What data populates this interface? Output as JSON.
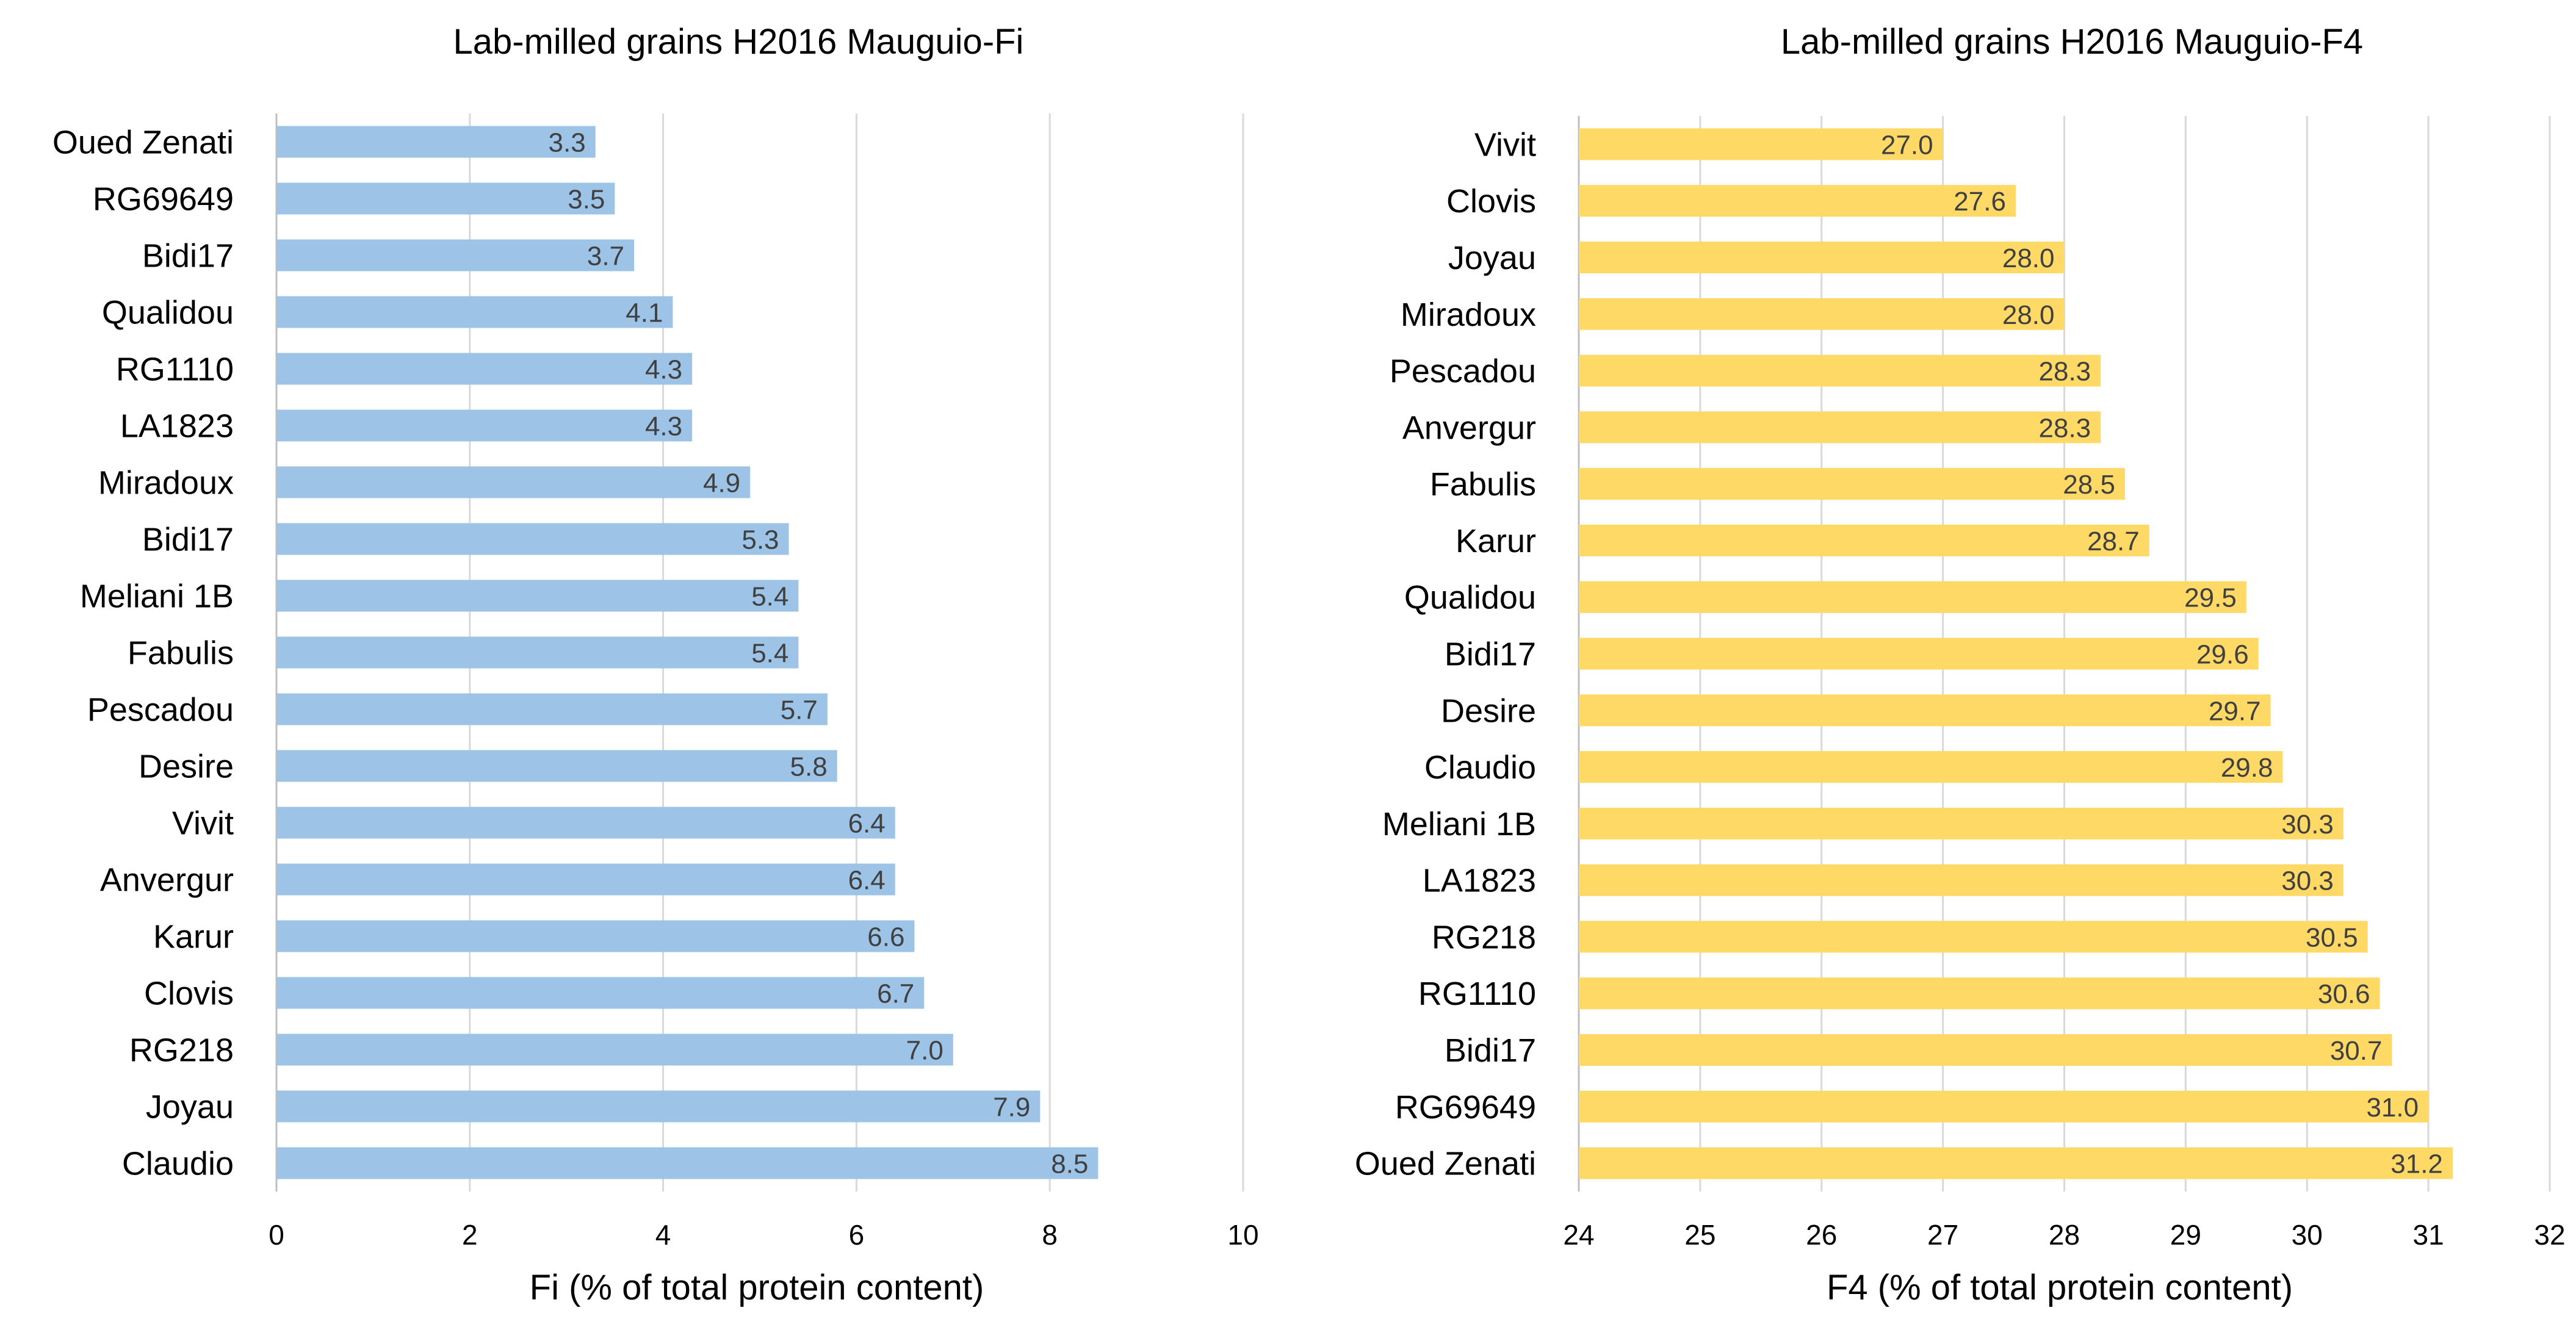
{
  "chart_data": [
    {
      "type": "bar",
      "orientation": "horizontal",
      "title": "Lab-milled grains H2016 Mauguio-Fi",
      "xlabel": "Fi (% of total protein content)",
      "ylabel": "",
      "xlim": [
        0,
        10
      ],
      "xticks": [
        "0",
        "2",
        "4",
        "6",
        "8",
        "10"
      ],
      "categories": [
        "Oued Zenati",
        "RG69649",
        "Bidi17",
        "Qualidou",
        "RG1110",
        "LA1823",
        "Miradoux",
        "Bidi17",
        "Meliani 1B",
        "Fabulis",
        "Pescadou",
        "Desire",
        "Vivit",
        "Anvergur",
        "Karur",
        "Clovis",
        "RG218",
        "Joyau",
        "Claudio"
      ],
      "values": [
        3.3,
        3.5,
        3.7,
        4.1,
        4.3,
        4.3,
        4.9,
        5.3,
        5.4,
        5.4,
        5.7,
        5.8,
        6.4,
        6.4,
        6.6,
        6.7,
        7.0,
        7.9,
        8.5
      ],
      "data_labels": [
        "3.3",
        "3.5",
        "3.7",
        "4.1",
        "4.3",
        "4.3",
        "4.9",
        "5.3",
        "5.4",
        "5.4",
        "5.7",
        "5.8",
        "6.4",
        "6.4",
        "6.6",
        "6.7",
        "7.0",
        "7.9",
        "8.5"
      ],
      "bar_color": "#9dc3e6",
      "grid": true,
      "legend": "none"
    },
    {
      "type": "bar",
      "orientation": "horizontal",
      "title": "Lab-milled grains H2016 Mauguio-F4",
      "xlabel": "F4 (% of total protein content)",
      "ylabel": "",
      "xlim": [
        24,
        32
      ],
      "xticks": [
        "24",
        "25",
        "26",
        "27",
        "28",
        "29",
        "30",
        "31",
        "32"
      ],
      "categories": [
        "Vivit",
        "Clovis",
        "Joyau",
        "Miradoux",
        "Pescadou",
        "Anvergur",
        "Fabulis",
        "Karur",
        "Qualidou",
        "Bidi17",
        "Desire",
        "Claudio",
        "Meliani 1B",
        "LA1823",
        "RG218",
        "RG1110",
        "Bidi17",
        "RG69649",
        "Oued Zenati"
      ],
      "values": [
        27.0,
        27.6,
        28.0,
        28.0,
        28.3,
        28.3,
        28.5,
        28.7,
        29.5,
        29.6,
        29.7,
        29.8,
        30.3,
        30.3,
        30.5,
        30.6,
        30.7,
        31.0,
        31.2
      ],
      "data_labels": [
        "27.0",
        "27.6",
        "28.0",
        "28.0",
        "28.3",
        "28.3",
        "28.5",
        "28.7",
        "29.5",
        "29.6",
        "29.7",
        "29.8",
        "30.3",
        "30.3",
        "30.5",
        "30.6",
        "30.7",
        "31.0",
        "31.2"
      ],
      "bar_color": "#ffd966",
      "grid": true,
      "legend": "none"
    }
  ]
}
